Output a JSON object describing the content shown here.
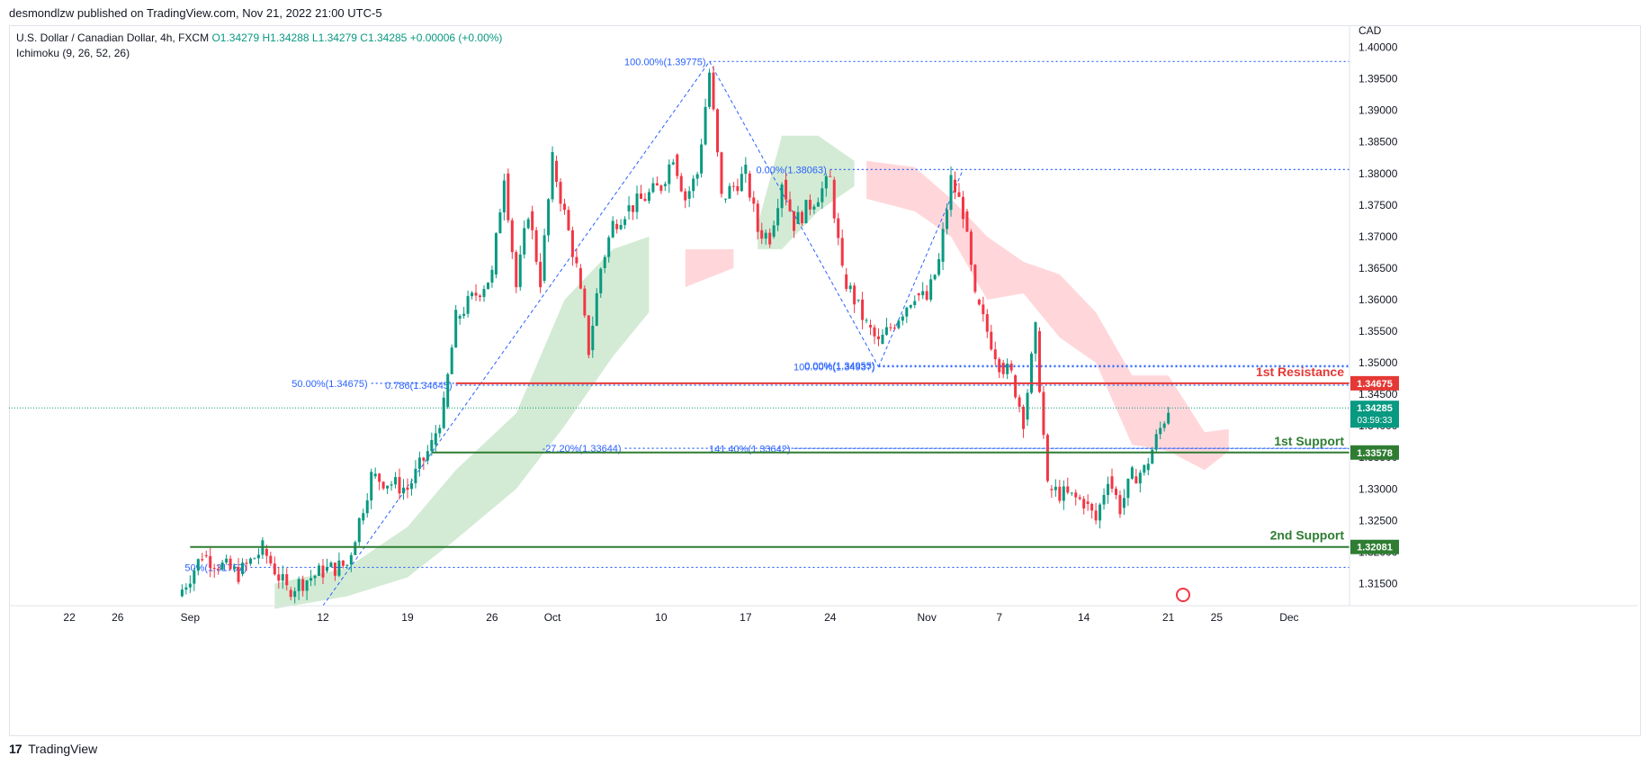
{
  "header": {
    "published": "desmondlzw published on TradingView.com, Nov 21, 2022 21:00 UTC-5",
    "symbol": "U.S. Dollar / Canadian Dollar, 4h, FXCM",
    "open": "O1.34279",
    "high": "H1.34288",
    "low": "L1.34279",
    "close": "C1.34285",
    "change": "+0.00006 (+0.00%)",
    "indicator": "Ichimoku (9, 26, 52, 26)"
  },
  "footer": {
    "brand": "TradingView"
  },
  "colors": {
    "bull": "#089981",
    "bear": "#f23645",
    "fib": "#2962ff",
    "cloud_bull": "#c8e6c9",
    "cloud_bear": "#ffcdd2",
    "resistance": "#e53935",
    "support": "#2e7d32"
  },
  "chart_data": {
    "type": "candlestick",
    "currency": "CAD",
    "ylim": [
      1.3115,
      1.4035
    ],
    "y_ticks": [
      "1.40000",
      "1.39500",
      "1.39000",
      "1.38500",
      "1.38000",
      "1.37500",
      "1.37000",
      "1.36500",
      "1.36000",
      "1.35500",
      "1.35000",
      "1.34500",
      "1.34000",
      "1.33500",
      "1.33000",
      "1.32500",
      "1.32000",
      "1.31500"
    ],
    "x_ticks": [
      {
        "label": "22",
        "x": "2022-08-22"
      },
      {
        "label": "26",
        "x": "2022-08-26"
      },
      {
        "label": "Sep",
        "x": "2022-09-01"
      },
      {
        "label": "12",
        "x": "2022-09-12"
      },
      {
        "label": "19",
        "x": "2022-09-19"
      },
      {
        "label": "26",
        "x": "2022-09-26"
      },
      {
        "label": "Oct",
        "x": "2022-10-01"
      },
      {
        "label": "10",
        "x": "2022-10-10"
      },
      {
        "label": "17",
        "x": "2022-10-17"
      },
      {
        "label": "24",
        "x": "2022-10-24"
      },
      {
        "label": "Nov",
        "x": "2022-11-01"
      },
      {
        "label": "7",
        "x": "2022-11-07"
      },
      {
        "label": "14",
        "x": "2022-11-14"
      },
      {
        "label": "21",
        "x": "2022-11-21"
      },
      {
        "label": "25",
        "x": "2022-11-25"
      },
      {
        "label": "Dec",
        "x": "2022-12-01"
      }
    ],
    "price_path": [
      [
        "2022-08-31",
        1.313
      ],
      [
        "2022-09-02",
        1.3195
      ],
      [
        "2022-09-05",
        1.3165
      ],
      [
        "2022-09-07",
        1.3205
      ],
      [
        "2022-09-09",
        1.314
      ],
      [
        "2022-09-12",
        1.317
      ],
      [
        "2022-09-14",
        1.318
      ],
      [
        "2022-09-15",
        1.325
      ],
      [
        "2022-09-16",
        1.332
      ],
      [
        "2022-09-19",
        1.33
      ],
      [
        "2022-09-21",
        1.337
      ],
      [
        "2022-09-22",
        1.343
      ],
      [
        "2022-09-23",
        1.357
      ],
      [
        "2022-09-26",
        1.364
      ],
      [
        "2022-09-27",
        1.38
      ],
      [
        "2022-09-28",
        1.362
      ],
      [
        "2022-09-29",
        1.374
      ],
      [
        "2022-09-30",
        1.363
      ],
      [
        "2022-10-01",
        1.382
      ],
      [
        "2022-10-03",
        1.365
      ],
      [
        "2022-10-04",
        1.352
      ],
      [
        "2022-10-05",
        1.365
      ],
      [
        "2022-10-06",
        1.372
      ],
      [
        "2022-10-07",
        1.374
      ],
      [
        "2022-10-10",
        1.378
      ],
      [
        "2022-10-11",
        1.383
      ],
      [
        "2022-10-12",
        1.376
      ],
      [
        "2022-10-13",
        1.38
      ],
      [
        "2022-10-14",
        1.396
      ],
      [
        "2022-10-15",
        1.376
      ],
      [
        "2022-10-17",
        1.38
      ],
      [
        "2022-10-18",
        1.371
      ],
      [
        "2022-10-19",
        1.37
      ],
      [
        "2022-10-20",
        1.379
      ],
      [
        "2022-10-21",
        1.372
      ],
      [
        "2022-10-24",
        1.379
      ],
      [
        "2022-10-25",
        1.364
      ],
      [
        "2022-10-26",
        1.36
      ],
      [
        "2022-10-27",
        1.356
      ],
      [
        "2022-10-28",
        1.353
      ],
      [
        "2022-10-31",
        1.361
      ],
      [
        "2022-11-01",
        1.36
      ],
      [
        "2022-11-02",
        1.366
      ],
      [
        "2022-11-03",
        1.379
      ],
      [
        "2022-11-04",
        1.374
      ],
      [
        "2022-11-05",
        1.36
      ],
      [
        "2022-11-07",
        1.35
      ],
      [
        "2022-11-08",
        1.348
      ],
      [
        "2022-11-09",
        1.341
      ],
      [
        "2022-11-10",
        1.355
      ],
      [
        "2022-11-11",
        1.33
      ],
      [
        "2022-11-14",
        1.328
      ],
      [
        "2022-11-15",
        1.325
      ],
      [
        "2022-11-16",
        1.332
      ],
      [
        "2022-11-17",
        1.327
      ],
      [
        "2022-11-18",
        1.332
      ],
      [
        "2022-11-19",
        1.333
      ],
      [
        "2022-11-21",
        1.3428
      ]
    ],
    "cloud_segments": [
      {
        "color": "bull",
        "points": [
          [
            "2022-09-08",
            1.311,
            1.315
          ],
          [
            "2022-09-14",
            1.313,
            1.3175
          ],
          [
            "2022-09-19",
            1.316,
            1.324
          ],
          [
            "2022-09-23",
            1.322,
            1.333
          ],
          [
            "2022-09-28",
            1.33,
            1.342
          ],
          [
            "2022-10-02",
            1.34,
            1.36
          ],
          [
            "2022-10-06",
            1.351,
            1.368
          ],
          [
            "2022-10-09",
            1.358,
            1.37
          ]
        ]
      },
      {
        "color": "bear",
        "points": [
          [
            "2022-10-12",
            1.362,
            1.368
          ],
          [
            "2022-10-16",
            1.365,
            1.368
          ]
        ]
      },
      {
        "color": "bull",
        "points": [
          [
            "2022-10-18",
            1.368,
            1.372
          ],
          [
            "2022-10-20",
            1.368,
            1.386
          ],
          [
            "2022-10-23",
            1.374,
            1.386
          ],
          [
            "2022-10-26",
            1.378,
            1.382
          ]
        ]
      },
      {
        "color": "bear",
        "points": [
          [
            "2022-10-27",
            1.376,
            1.382
          ],
          [
            "2022-10-31",
            1.374,
            1.381
          ],
          [
            "2022-11-03",
            1.37,
            1.376
          ],
          [
            "2022-11-06",
            1.36,
            1.37
          ],
          [
            "2022-11-09",
            1.361,
            1.366
          ],
          [
            "2022-11-12",
            1.354,
            1.364
          ],
          [
            "2022-11-15",
            1.35,
            1.358
          ],
          [
            "2022-11-18",
            1.337,
            1.348
          ],
          [
            "2022-11-21",
            1.336,
            1.348
          ],
          [
            "2022-11-24",
            1.333,
            1.339
          ],
          [
            "2022-11-26",
            1.336,
            1.3395
          ]
        ]
      }
    ],
    "fibonacci": [
      {
        "label": "100.00%(1.39775)",
        "value": 1.39775,
        "x_start": "2022-10-14"
      },
      {
        "label": "0.00%(1.38063)",
        "value": 1.38063,
        "x_start": "2022-10-24"
      },
      {
        "label": "0.00%(1.34955)",
        "value": 1.34955,
        "x_start": "2022-10-28"
      },
      {
        "label": "100.00%(1.34937)",
        "value": 1.34937,
        "x_start": "2022-10-28"
      },
      {
        "label": "50.00%(1.34675)",
        "value": 1.34675,
        "x_start": "2022-09-16"
      },
      {
        "label": "0.786(1.34645)",
        "value": 1.34645,
        "x_start": "2022-09-23"
      },
      {
        "label": "-27.20%(1.33644)",
        "value": 1.33644,
        "x_start": "2022-10-07"
      },
      {
        "label": "141.40%(1.33642)",
        "value": 1.33642,
        "x_start": "2022-10-21"
      },
      {
        "label": "50%(1.31757)",
        "value": 1.31757,
        "x_start": "2022-09-06"
      }
    ],
    "levels": [
      {
        "name": "1st Resistance",
        "value": 1.34675,
        "badge": "1.34675",
        "color": "resistance",
        "x_start": "2022-09-23"
      },
      {
        "name": "1st Support",
        "value": 1.33578,
        "badge": "1.33578",
        "color": "support",
        "x_start": "2022-09-21"
      },
      {
        "name": "2nd Support",
        "value": 1.32081,
        "badge": "1.32081",
        "color": "support",
        "x_start": "2022-09-01"
      }
    ],
    "current_price": {
      "value": 1.34285,
      "label": "1.34285",
      "countdown": "03:59:33"
    }
  }
}
